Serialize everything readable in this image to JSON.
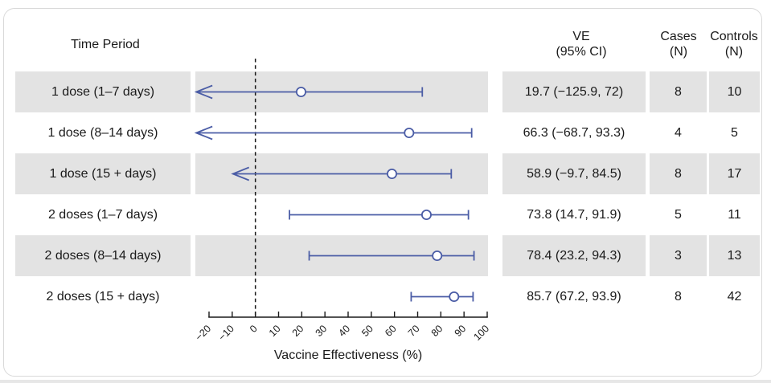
{
  "headers": {
    "time_period": "Time Period",
    "ve_line1": "VE",
    "ve_line2": "(95% CI)",
    "cases_line1": "Cases",
    "cases_line2": "(N)",
    "controls_line1": "Controls",
    "controls_line2": "(N)"
  },
  "colors": {
    "band": "#e3e3e3",
    "line_blue": "#4b5da6",
    "axis_black": "#1a1a1a",
    "text": "#1a1a1a",
    "card_border": "#d9d9d9"
  },
  "chart_data": {
    "type": "forest",
    "xlabel": "Vaccine Effectiveness (%)",
    "xlim": [
      -20,
      100
    ],
    "xticks": [
      -20,
      -10,
      0,
      10,
      20,
      30,
      40,
      50,
      60,
      70,
      80,
      90,
      100
    ],
    "xtick_labels": [
      "−20",
      "−10",
      "0",
      "10",
      "20",
      "30",
      "40",
      "50",
      "60",
      "70",
      "80",
      "90",
      "100"
    ],
    "reference_line": 0,
    "grid": false,
    "marker": "open-circle",
    "rows": [
      {
        "label": "1 dose (1–7 days)",
        "ve": 19.7,
        "ci_lo": -125.9,
        "ci_hi": 72,
        "ve_text": "19.7 (−125.9, 72)",
        "cases": "8",
        "controls": "10",
        "shaded": true,
        "left_end": "arrow",
        "draw_lo": -25.5
      },
      {
        "label": "1 dose (8–14 days)",
        "ve": 66.3,
        "ci_lo": -68.7,
        "ci_hi": 93.3,
        "ve_text": "66.3 (−68.7, 93.3)",
        "cases": "4",
        "controls": "5",
        "shaded": false,
        "left_end": "arrow",
        "draw_lo": -25.5
      },
      {
        "label": "1 dose (15 + days)",
        "ve": 58.9,
        "ci_lo": -9.7,
        "ci_hi": 84.5,
        "ve_text": "58.9 (−9.7, 84.5)",
        "cases": "8",
        "controls": "17",
        "shaded": true,
        "left_end": "arrow",
        "draw_lo": -9.7
      },
      {
        "label": "2 doses (1–7 days)",
        "ve": 73.8,
        "ci_lo": 14.7,
        "ci_hi": 91.9,
        "ve_text": "73.8 (14.7, 91.9)",
        "cases": "5",
        "controls": "11",
        "shaded": false,
        "left_end": "cap",
        "draw_lo": 14.7
      },
      {
        "label": "2 doses (8–14 days)",
        "ve": 78.4,
        "ci_lo": 23.2,
        "ci_hi": 94.3,
        "ve_text": "78.4 (23.2, 94.3)",
        "cases": "3",
        "controls": "13",
        "shaded": true,
        "left_end": "cap",
        "draw_lo": 23.2
      },
      {
        "label": "2 doses (15 + days)",
        "ve": 85.7,
        "ci_lo": 67.2,
        "ci_hi": 93.9,
        "ve_text": "85.7 (67.2, 93.9)",
        "cases": "8",
        "controls": "42",
        "shaded": false,
        "left_end": "cap",
        "draw_lo": 67.2
      }
    ]
  }
}
